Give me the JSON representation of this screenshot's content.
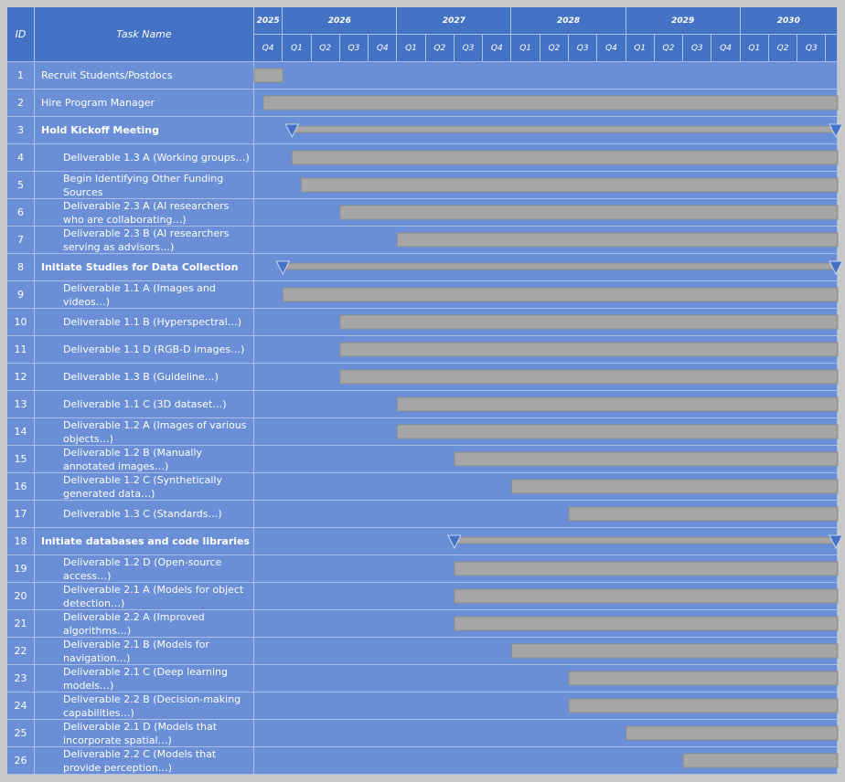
{
  "chart_data": {
    "type": "gantt",
    "id_header": "ID",
    "name_header": "Task Name",
    "xlim": [
      2025.75,
      2030.85
    ],
    "year_ticks": [
      2025,
      2026,
      2027,
      2028,
      2029,
      2030
    ],
    "xticks": [
      {
        "value": 2025.75,
        "label": "Q4"
      },
      {
        "value": 2026,
        "label": "Q1"
      },
      {
        "value": 2026.25,
        "label": "Q2"
      },
      {
        "value": 2026.5,
        "label": "Q3"
      },
      {
        "value": 2026.75,
        "label": "Q4"
      },
      {
        "value": 2027,
        "label": "Q1"
      },
      {
        "value": 2027.25,
        "label": "Q2"
      },
      {
        "value": 2027.5,
        "label": "Q3"
      },
      {
        "value": 2027.75,
        "label": "Q4"
      },
      {
        "value": 2028,
        "label": "Q1"
      },
      {
        "value": 2028.25,
        "label": "Q2"
      },
      {
        "value": 2028.5,
        "label": "Q3"
      },
      {
        "value": 2028.75,
        "label": "Q4"
      },
      {
        "value": 2029,
        "label": "Q1"
      },
      {
        "value": 2029.25,
        "label": "Q2"
      },
      {
        "value": 2029.5,
        "label": "Q3"
      },
      {
        "value": 2029.75,
        "label": "Q4"
      },
      {
        "value": 2030,
        "label": "Q1"
      },
      {
        "value": 2030.25,
        "label": "Q2"
      },
      {
        "value": 2030.5,
        "label": "Q3"
      }
    ],
    "bar_color": "#a6a6a6",
    "summary_color": "#4472c4",
    "tasks": [
      {
        "id": 1,
        "name": "Recruit Students/Postdocs",
        "level": 0,
        "start": 2025.75,
        "end": 2026.0
      },
      {
        "id": 2,
        "name": "Hire Program Manager",
        "level": 0,
        "start": 2025.83,
        "end": 2030.85
      },
      {
        "id": 3,
        "name": "Hold Kickoff Meeting",
        "level": 0,
        "summary": true,
        "start": 2026.08,
        "end": 2030.85
      },
      {
        "id": 4,
        "name": "Deliverable 1.3 A (Working groups…)",
        "level": 1,
        "start": 2026.08,
        "end": 2030.85
      },
      {
        "id": 5,
        "name": "Begin Identifying Other Funding Sources",
        "level": 1,
        "start": 2026.16,
        "end": 2030.85
      },
      {
        "id": 6,
        "name": "Deliverable 2.3 A (AI researchers who are collaborating…)",
        "level": 1,
        "start": 2026.5,
        "end": 2030.85
      },
      {
        "id": 7,
        "name": "Deliverable 2.3 B (AI researchers serving as advisors…)",
        "level": 1,
        "start": 2027.0,
        "end": 2030.85
      },
      {
        "id": 8,
        "name": "Initiate Studies for Data Collection",
        "level": 0,
        "summary": true,
        "start": 2026.0,
        "end": 2030.85
      },
      {
        "id": 9,
        "name": "Deliverable 1.1 A (Images and videos…)",
        "level": 1,
        "start": 2026.0,
        "end": 2030.85
      },
      {
        "id": 10,
        "name": "Deliverable 1.1 B (Hyperspectral…)",
        "level": 1,
        "start": 2026.5,
        "end": 2030.85
      },
      {
        "id": 11,
        "name": "Deliverable 1.1 D (RGB-D images…)",
        "level": 1,
        "start": 2026.5,
        "end": 2030.85
      },
      {
        "id": 12,
        "name": "Deliverable 1.3 B (Guideline…)",
        "level": 1,
        "start": 2026.5,
        "end": 2030.85
      },
      {
        "id": 13,
        "name": "Deliverable 1.1 C (3D dataset…)",
        "level": 1,
        "start": 2027.0,
        "end": 2030.85
      },
      {
        "id": 14,
        "name": "Deliverable 1.2 A (Images of various objects…)",
        "level": 1,
        "start": 2027.0,
        "end": 2030.85
      },
      {
        "id": 15,
        "name": "Deliverable 1.2 B (Manually annotated images…)",
        "level": 1,
        "start": 2027.5,
        "end": 2030.85
      },
      {
        "id": 16,
        "name": "Deliverable 1.2 C (Synthetically generated data…)",
        "level": 1,
        "start": 2028.0,
        "end": 2030.85
      },
      {
        "id": 17,
        "name": "Deliverable 1.3 C (Standards…)",
        "level": 1,
        "start": 2028.5,
        "end": 2030.85
      },
      {
        "id": 18,
        "name": "Initiate databases and code libraries",
        "level": 0,
        "summary": true,
        "start": 2027.5,
        "end": 2030.85
      },
      {
        "id": 19,
        "name": "Deliverable 1.2 D (Open-source access…)",
        "level": 1,
        "start": 2027.5,
        "end": 2030.85
      },
      {
        "id": 20,
        "name": "Deliverable 2.1 A (Models for object detection…)",
        "level": 1,
        "start": 2027.5,
        "end": 2030.85
      },
      {
        "id": 21,
        "name": "Deliverable 2.2 A (Improved algorithms…)",
        "level": 1,
        "start": 2027.5,
        "end": 2030.85
      },
      {
        "id": 22,
        "name": "Deliverable 2.1 B (Models for navigation…)",
        "level": 1,
        "start": 2028.0,
        "end": 2030.85
      },
      {
        "id": 23,
        "name": "Deliverable 2.1 C (Deep learning models…)",
        "level": 1,
        "start": 2028.5,
        "end": 2030.85
      },
      {
        "id": 24,
        "name": "Deliverable 2.2 B (Decision-making capabilities…)",
        "level": 1,
        "start": 2028.5,
        "end": 2030.85
      },
      {
        "id": 25,
        "name": "Deliverable 2.1 D (Models that incorporate spatial…)",
        "level": 1,
        "start": 2029.0,
        "end": 2030.85
      },
      {
        "id": 26,
        "name": "Deliverable 2.2 C (Models that provide perception…)",
        "level": 1,
        "start": 2029.5,
        "end": 2030.85
      }
    ]
  }
}
